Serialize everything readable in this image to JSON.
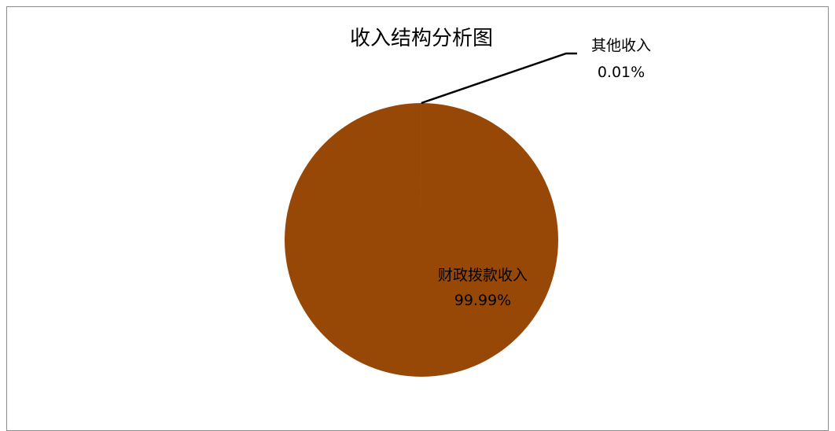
{
  "chart_data": {
    "type": "pie",
    "title": "收入结构分析图",
    "categories": [
      "财政拨款收入",
      "其他收入"
    ],
    "values": [
      99.99,
      0.01
    ],
    "value_labels": [
      "99.99%",
      "0.01%"
    ],
    "colors": [
      "#984806",
      "#4F81BD"
    ],
    "legend": "none"
  }
}
